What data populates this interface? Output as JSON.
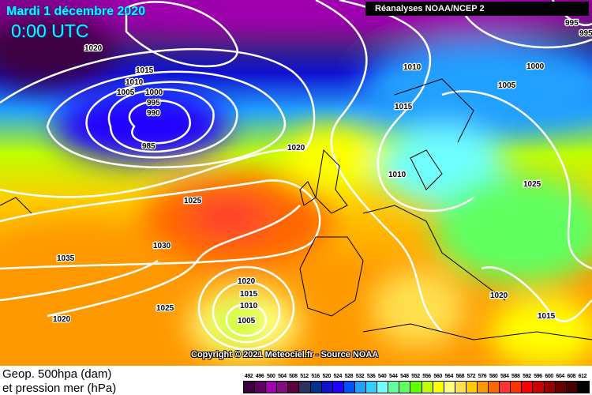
{
  "header": {
    "date": "Mardi 1 décembre 2020",
    "time": "0:00 UTC",
    "source": "Réanalyses NOAA/NCEP 2"
  },
  "map": {
    "copyright": "Copyright © 2021 Meteociel.fr - Source NOAA",
    "isobar_labels": [
      "1020",
      "1015",
      "1010",
      "1005",
      "1000",
      "995",
      "990",
      "985",
      "1020",
      "1025",
      "1030",
      "1035",
      "1025",
      "1020",
      "1020",
      "1015",
      "1010",
      "1005",
      "1010",
      "1015",
      "1010",
      "1000",
      "1005",
      "1025",
      "995",
      "995",
      "1020",
      "1015"
    ],
    "isobar_color": "#ffffff"
  },
  "footer": {
    "line1": "Geop. 500hpa (dam)",
    "line2": "et pression mer (hPa)"
  },
  "legend": {
    "labels": [
      "492",
      "496",
      "500",
      "504",
      "508",
      "512",
      "516",
      "520",
      "524",
      "528",
      "532",
      "536",
      "540",
      "544",
      "548",
      "552",
      "556",
      "560",
      "564",
      "568",
      "572",
      "576",
      "580",
      "584",
      "588",
      "592",
      "596",
      "600",
      "604",
      "608",
      "612"
    ],
    "colors": [
      "#3c0040",
      "#600060",
      "#a000b0",
      "#801080",
      "#600040",
      "#303060",
      "#003090",
      "#1010d0",
      "#2000ff",
      "#0050ff",
      "#20a0ff",
      "#30d0ff",
      "#70ffff",
      "#60ffa0",
      "#60ff60",
      "#60ff00",
      "#c0ff00",
      "#ffff00",
      "#ffff80",
      "#ffe050",
      "#ffcc00",
      "#ff9900",
      "#ff6600",
      "#ff3333",
      "#ff3300",
      "#ff0000",
      "#cc0000",
      "#990000",
      "#6a0000",
      "#4a0000",
      "#000000"
    ]
  }
}
